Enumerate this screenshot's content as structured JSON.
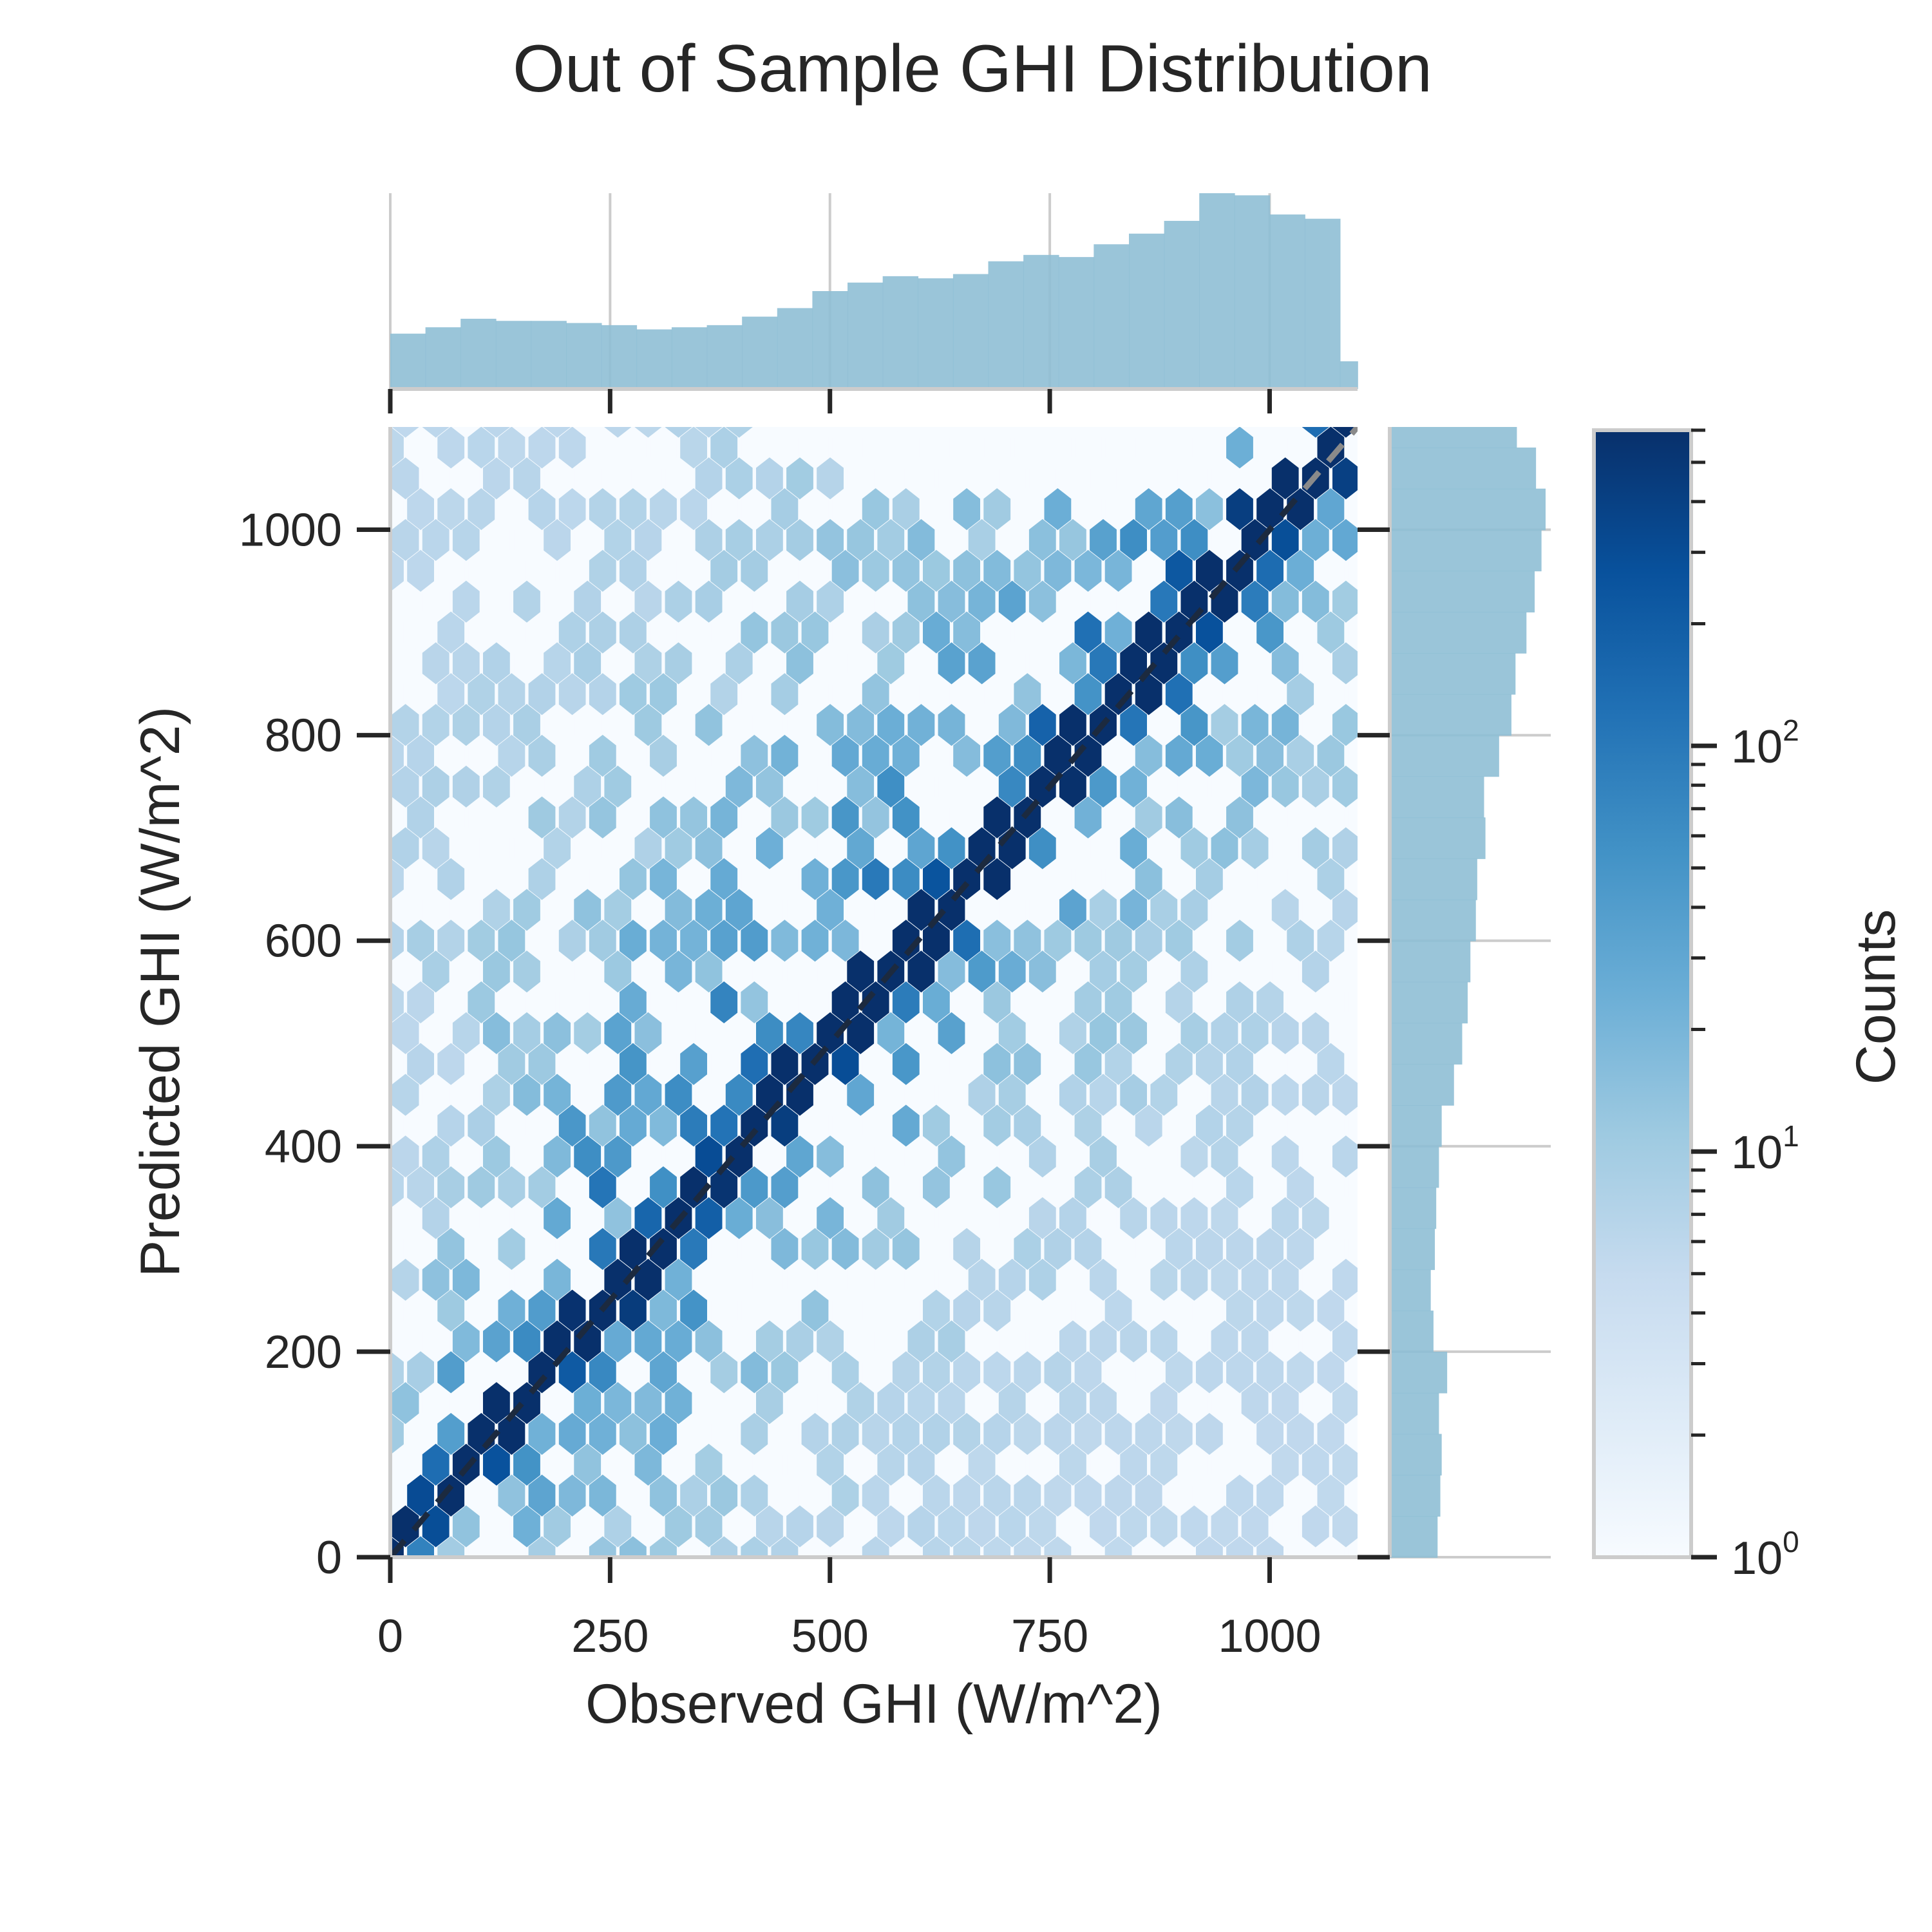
{
  "chart_data": {
    "type": "hexbin",
    "title": "Out of Sample GHI Distribution",
    "xlabel": "Observed GHI (W/m^2)",
    "ylabel": "Predicted GHI (W/m^2)",
    "xlim": [
      0,
      1100
    ],
    "ylim": [
      0,
      1100
    ],
    "xticks": [
      0,
      250,
      500,
      750,
      1000
    ],
    "yticks": [
      0,
      200,
      400,
      600,
      800,
      1000
    ],
    "colormap": "Blues",
    "colorbar": {
      "label": "Counts",
      "scale": "log",
      "range": [
        1,
        600
      ],
      "ticks": [
        {
          "base": "10",
          "exp": "0",
          "value": 1
        },
        {
          "base": "10",
          "exp": "1",
          "value": 10
        },
        {
          "base": "10",
          "exp": "2",
          "value": 100
        }
      ]
    },
    "reference_line": {
      "style": "dashed",
      "from": [
        0,
        0
      ],
      "to": [
        1100,
        1100
      ]
    },
    "marginal_x": {
      "type": "histogram",
      "bin_width": 40,
      "bins": [
        {
          "x": 0,
          "h": 26
        },
        {
          "x": 40,
          "h": 29
        },
        {
          "x": 80,
          "h": 33
        },
        {
          "x": 120,
          "h": 32
        },
        {
          "x": 160,
          "h": 32
        },
        {
          "x": 200,
          "h": 31
        },
        {
          "x": 240,
          "h": 30
        },
        {
          "x": 280,
          "h": 28
        },
        {
          "x": 320,
          "h": 29
        },
        {
          "x": 360,
          "h": 30
        },
        {
          "x": 400,
          "h": 34
        },
        {
          "x": 440,
          "h": 38
        },
        {
          "x": 480,
          "h": 46
        },
        {
          "x": 520,
          "h": 50
        },
        {
          "x": 560,
          "h": 53
        },
        {
          "x": 600,
          "h": 52
        },
        {
          "x": 640,
          "h": 54
        },
        {
          "x": 680,
          "h": 60
        },
        {
          "x": 720,
          "h": 63
        },
        {
          "x": 760,
          "h": 62
        },
        {
          "x": 800,
          "h": 68
        },
        {
          "x": 840,
          "h": 73
        },
        {
          "x": 880,
          "h": 79
        },
        {
          "x": 920,
          "h": 92
        },
        {
          "x": 960,
          "h": 91
        },
        {
          "x": 1000,
          "h": 82
        },
        {
          "x": 1040,
          "h": 80
        },
        {
          "x": 1080,
          "h": 13
        }
      ]
    },
    "marginal_y": {
      "type": "histogram",
      "bin_width": 40,
      "bins": [
        {
          "y": 0,
          "w": 35
        },
        {
          "y": 40,
          "w": 37
        },
        {
          "y": 80,
          "w": 38
        },
        {
          "y": 120,
          "w": 36
        },
        {
          "y": 160,
          "w": 42
        },
        {
          "y": 200,
          "w": 32
        },
        {
          "y": 240,
          "w": 30
        },
        {
          "y": 280,
          "w": 33
        },
        {
          "y": 320,
          "w": 34
        },
        {
          "y": 360,
          "w": 36
        },
        {
          "y": 400,
          "w": 38
        },
        {
          "y": 440,
          "w": 47
        },
        {
          "y": 480,
          "w": 53
        },
        {
          "y": 520,
          "w": 57
        },
        {
          "y": 560,
          "w": 59
        },
        {
          "y": 600,
          "w": 63
        },
        {
          "y": 640,
          "w": 64
        },
        {
          "y": 680,
          "w": 70
        },
        {
          "y": 720,
          "w": 69
        },
        {
          "y": 760,
          "w": 80
        },
        {
          "y": 800,
          "w": 89
        },
        {
          "y": 840,
          "w": 92
        },
        {
          "y": 880,
          "w": 100
        },
        {
          "y": 920,
          "w": 106
        },
        {
          "y": 960,
          "w": 111
        },
        {
          "y": 1000,
          "w": 114
        },
        {
          "y": 1040,
          "w": 107
        },
        {
          "y": 1080,
          "w": 93
        }
      ]
    }
  }
}
